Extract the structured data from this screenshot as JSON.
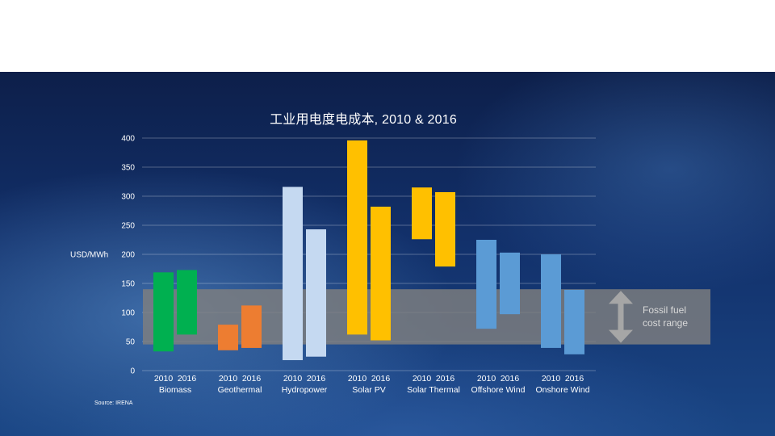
{
  "colors": {
    "biomass": "#00b050",
    "geothermal": "#ed7d31",
    "hydropower": "#c5d9f1",
    "solar": "#ffc000",
    "wind": "#5b9bd5",
    "fossil_band": "#7f7f7f",
    "fossil_arrow": "#a6a6a6"
  },
  "chart_data": {
    "type": "bar",
    "subtype": "floating-range",
    "title": "工业用电度电成本, 2010 & 2016",
    "ylabel": "USD/MWh",
    "ylim": [
      0,
      400
    ],
    "yticks": [
      0,
      50,
      100,
      150,
      200,
      250,
      300,
      350,
      400
    ],
    "grid": true,
    "series_years": [
      "2010",
      "2016"
    ],
    "categories": [
      {
        "name": "Biomass",
        "color_key": "biomass",
        "ranges": [
          {
            "year": "2010",
            "low": 33,
            "high": 169
          },
          {
            "year": "2016",
            "low": 62,
            "high": 173
          }
        ]
      },
      {
        "name": "Geothermal",
        "color_key": "geothermal",
        "ranges": [
          {
            "year": "2010",
            "low": 35,
            "high": 79
          },
          {
            "year": "2016",
            "low": 39,
            "high": 112
          }
        ]
      },
      {
        "name": "Hydropower",
        "color_key": "hydropower",
        "ranges": [
          {
            "year": "2010",
            "low": 18,
            "high": 316
          },
          {
            "year": "2016",
            "low": 24,
            "high": 243
          }
        ]
      },
      {
        "name": "Solar PV",
        "color_key": "solar",
        "ranges": [
          {
            "year": "2010",
            "low": 62,
            "high": 396
          },
          {
            "year": "2016",
            "low": 52,
            "high": 282
          }
        ]
      },
      {
        "name": "Solar Thermal",
        "color_key": "solar",
        "ranges": [
          {
            "year": "2010",
            "low": 226,
            "high": 315
          },
          {
            "year": "2016",
            "low": 179,
            "high": 307
          }
        ]
      },
      {
        "name": "Offshore Wind",
        "color_key": "wind",
        "ranges": [
          {
            "year": "2010",
            "low": 72,
            "high": 225
          },
          {
            "year": "2016",
            "low": 97,
            "high": 203
          }
        ]
      },
      {
        "name": "Onshore Wind",
        "color_key": "wind",
        "ranges": [
          {
            "year": "2010",
            "low": 39,
            "high": 200
          },
          {
            "year": "2016",
            "low": 28,
            "high": 139
          }
        ]
      }
    ],
    "fossil_fuel_range": {
      "low": 45,
      "high": 140,
      "label_line1": "Fossil fuel",
      "label_line2": "cost range"
    },
    "source": "Source:  IRENA"
  }
}
